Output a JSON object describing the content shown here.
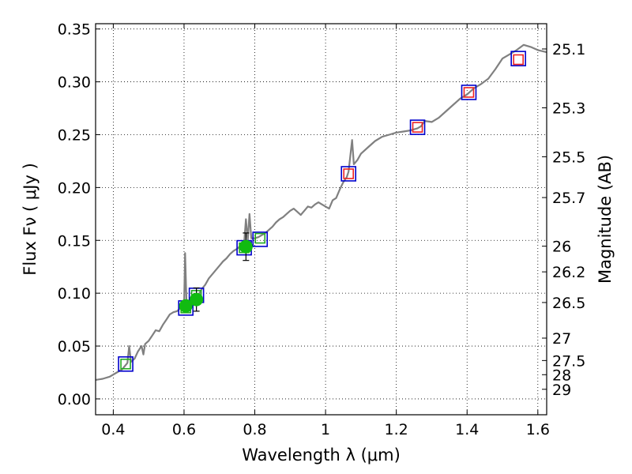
{
  "chart_data": {
    "type": "scatter",
    "xlabel": "Wavelength  λ (μm)",
    "ylabel": "Flux  Fν  ( μJy )",
    "ylabel_right": "Magnitude (AB)",
    "xlim": [
      0.35,
      1.625
    ],
    "ylim": [
      -0.015,
      0.355
    ],
    "grid": true,
    "x_ticks": [
      0.4,
      0.6,
      0.8,
      1.0,
      1.2,
      1.4,
      1.6
    ],
    "x_tick_labels": [
      "0.4",
      "0.6",
      "0.8",
      "1",
      "1.2",
      "1.4",
      "1.6"
    ],
    "y_ticks": [
      0.0,
      0.05,
      0.1,
      0.15,
      0.2,
      0.25,
      0.3,
      0.35
    ],
    "y_tick_labels": [
      "0.00",
      "0.05",
      "0.10",
      "0.15",
      "0.20",
      "0.25",
      "0.30",
      "0.35"
    ],
    "mag_ticks": [
      {
        "label": "25.1",
        "flux": 0.3311
      },
      {
        "label": "25.3",
        "flux": 0.2754
      },
      {
        "label": "25.5",
        "flux": 0.2291
      },
      {
        "label": "25.7",
        "flux": 0.1905
      },
      {
        "label": "26",
        "flux": 0.1445
      },
      {
        "label": "26.2",
        "flux": 0.1202
      },
      {
        "label": "26.5",
        "flux": 0.0912
      },
      {
        "label": "27",
        "flux": 0.0575
      },
      {
        "label": "27.5",
        "flux": 0.0363
      },
      {
        "label": "28",
        "flux": 0.0229
      },
      {
        "label": "29",
        "flux": 0.0091
      }
    ],
    "series": [
      {
        "kind": "spectrum_line",
        "color": "#808080",
        "points": [
          [
            0.35,
            0.018
          ],
          [
            0.37,
            0.019
          ],
          [
            0.39,
            0.021
          ],
          [
            0.41,
            0.025
          ],
          [
            0.425,
            0.028
          ],
          [
            0.44,
            0.034
          ],
          [
            0.445,
            0.05
          ],
          [
            0.45,
            0.035
          ],
          [
            0.46,
            0.038
          ],
          [
            0.47,
            0.045
          ],
          [
            0.48,
            0.05
          ],
          [
            0.485,
            0.042
          ],
          [
            0.49,
            0.052
          ],
          [
            0.5,
            0.055
          ],
          [
            0.51,
            0.06
          ],
          [
            0.52,
            0.065
          ],
          [
            0.53,
            0.064
          ],
          [
            0.54,
            0.07
          ],
          [
            0.55,
            0.075
          ],
          [
            0.56,
            0.08
          ],
          [
            0.57,
            0.082
          ],
          [
            0.58,
            0.083
          ],
          [
            0.59,
            0.086
          ],
          [
            0.6,
            0.088
          ],
          [
            0.603,
            0.138
          ],
          [
            0.607,
            0.09
          ],
          [
            0.62,
            0.092
          ],
          [
            0.63,
            0.094
          ],
          [
            0.64,
            0.098
          ],
          [
            0.65,
            0.104
          ],
          [
            0.66,
            0.108
          ],
          [
            0.67,
            0.114
          ],
          [
            0.68,
            0.118
          ],
          [
            0.69,
            0.122
          ],
          [
            0.7,
            0.126
          ],
          [
            0.71,
            0.13
          ],
          [
            0.72,
            0.133
          ],
          [
            0.73,
            0.137
          ],
          [
            0.74,
            0.14
          ],
          [
            0.75,
            0.142
          ],
          [
            0.76,
            0.145
          ],
          [
            0.77,
            0.148
          ],
          [
            0.775,
            0.17
          ],
          [
            0.78,
            0.15
          ],
          [
            0.785,
            0.175
          ],
          [
            0.79,
            0.152
          ],
          [
            0.8,
            0.152
          ],
          [
            0.81,
            0.153
          ],
          [
            0.82,
            0.155
          ],
          [
            0.83,
            0.157
          ],
          [
            0.84,
            0.16
          ],
          [
            0.85,
            0.163
          ],
          [
            0.86,
            0.167
          ],
          [
            0.87,
            0.17
          ],
          [
            0.88,
            0.172
          ],
          [
            0.89,
            0.175
          ],
          [
            0.9,
            0.178
          ],
          [
            0.91,
            0.18
          ],
          [
            0.92,
            0.177
          ],
          [
            0.93,
            0.174
          ],
          [
            0.94,
            0.178
          ],
          [
            0.95,
            0.182
          ],
          [
            0.96,
            0.181
          ],
          [
            0.97,
            0.184
          ],
          [
            0.98,
            0.186
          ],
          [
            0.99,
            0.184
          ],
          [
            1.0,
            0.182
          ],
          [
            1.01,
            0.18
          ],
          [
            1.02,
            0.188
          ],
          [
            1.03,
            0.19
          ],
          [
            1.04,
            0.198
          ],
          [
            1.05,
            0.205
          ],
          [
            1.06,
            0.21
          ],
          [
            1.065,
            0.215
          ],
          [
            1.075,
            0.245
          ],
          [
            1.08,
            0.222
          ],
          [
            1.09,
            0.226
          ],
          [
            1.1,
            0.232
          ],
          [
            1.12,
            0.238
          ],
          [
            1.14,
            0.244
          ],
          [
            1.16,
            0.248
          ],
          [
            1.18,
            0.25
          ],
          [
            1.2,
            0.252
          ],
          [
            1.22,
            0.253
          ],
          [
            1.24,
            0.254
          ],
          [
            1.26,
            0.256
          ],
          [
            1.27,
            0.258
          ],
          [
            1.28,
            0.263
          ],
          [
            1.3,
            0.262
          ],
          [
            1.32,
            0.266
          ],
          [
            1.34,
            0.272
          ],
          [
            1.36,
            0.278
          ],
          [
            1.38,
            0.284
          ],
          [
            1.4,
            0.288
          ],
          [
            1.42,
            0.294
          ],
          [
            1.44,
            0.298
          ],
          [
            1.46,
            0.303
          ],
          [
            1.48,
            0.312
          ],
          [
            1.5,
            0.322
          ],
          [
            1.52,
            0.326
          ],
          [
            1.54,
            0.33
          ],
          [
            1.56,
            0.335
          ],
          [
            1.58,
            0.333
          ],
          [
            1.6,
            0.33
          ],
          [
            1.625,
            0.328
          ]
        ]
      },
      {
        "kind": "model_squares_blue",
        "color": "#0000cc",
        "points": [
          [
            0.435,
            0.033
          ],
          [
            0.605,
            0.086
          ],
          [
            0.635,
            0.098
          ],
          [
            0.77,
            0.143
          ],
          [
            0.815,
            0.151
          ],
          [
            1.065,
            0.213
          ],
          [
            1.26,
            0.257
          ],
          [
            1.405,
            0.29
          ],
          [
            1.545,
            0.322
          ]
        ]
      },
      {
        "kind": "model_squares_green",
        "color": "#22aa22",
        "points": [
          [
            0.435,
            0.033
          ],
          [
            0.605,
            0.086
          ],
          [
            0.635,
            0.098
          ],
          [
            0.77,
            0.143
          ],
          [
            0.815,
            0.152
          ]
        ]
      },
      {
        "kind": "model_squares_red",
        "color": "#ee2222",
        "points": [
          [
            1.065,
            0.213
          ],
          [
            1.26,
            0.257
          ],
          [
            1.405,
            0.29
          ],
          [
            1.545,
            0.321
          ]
        ]
      },
      {
        "kind": "observed_points",
        "color": "#11bb11",
        "points": [
          {
            "x": 0.605,
            "y": 0.088,
            "err": 0.005
          },
          {
            "x": 0.635,
            "y": 0.094,
            "err": 0.011
          },
          {
            "x": 0.775,
            "y": 0.144,
            "err": 0.013
          }
        ]
      }
    ]
  }
}
